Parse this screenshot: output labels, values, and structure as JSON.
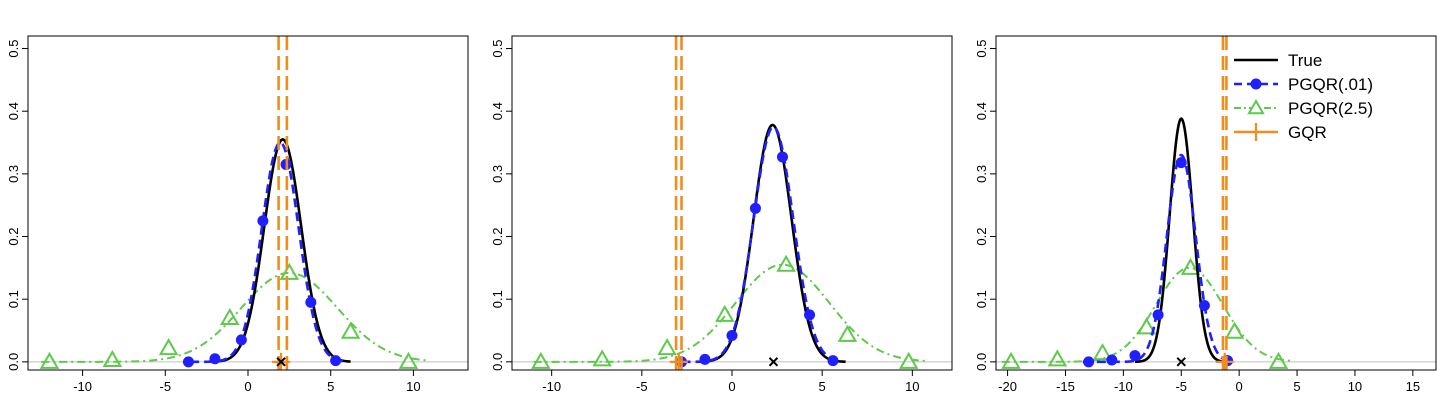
{
  "colors": {
    "true": "#000000",
    "pgqr01": "#1f1fff",
    "pgqr25": "#5ec94a",
    "gqr": "#f28c1e",
    "baseline": "#c0c0c0",
    "marker_x": "#000000"
  },
  "legend": {
    "placement": "top-right",
    "entries": [
      {
        "key": "true",
        "label": "True"
      },
      {
        "key": "pgqr01",
        "label": "PGQR(.01)"
      },
      {
        "key": "pgqr25",
        "label": "PGQR(2.5)"
      },
      {
        "key": "gqr",
        "label": "GQR"
      }
    ]
  },
  "chart_data": [
    {
      "type": "line",
      "title": "",
      "xlabel": "",
      "ylabel": "",
      "xlim": [
        -13.3,
        13.3
      ],
      "ylim": [
        -0.013,
        0.52
      ],
      "xticks": [
        -10,
        -5,
        0,
        5,
        10
      ],
      "yticks": [
        0.0,
        0.1,
        0.2,
        0.3,
        0.4,
        0.5
      ],
      "x_marker": 2.0,
      "true_curve": {
        "mu": 2.1,
        "sigma": 1.12,
        "peak": 0.355,
        "xmin": -2.0,
        "xmax": 6.2
      },
      "pgqr01": {
        "mu": 1.95,
        "sigma": 1.12,
        "peak": 0.35,
        "xmin": -3.5,
        "xmax": 6.0,
        "points": [
          [
            -3.6,
            0.0
          ],
          [
            -2.0,
            0.005
          ],
          [
            -0.4,
            0.035
          ],
          [
            0.9,
            0.225
          ],
          [
            2.3,
            0.315
          ],
          [
            3.8,
            0.095
          ],
          [
            5.3,
            0.002
          ]
        ]
      },
      "pgqr25": {
        "mu": 2.5,
        "sigma": 2.9,
        "peak": 0.142,
        "xmin": -12.5,
        "xmax": 10.8,
        "points": [
          [
            -12.0,
            0.0
          ],
          [
            -8.2,
            0.003
          ],
          [
            -4.8,
            0.022
          ],
          [
            -1.1,
            0.07
          ],
          [
            2.5,
            0.142
          ],
          [
            6.2,
            0.048
          ],
          [
            9.7,
            0.0
          ]
        ]
      },
      "gqr": {
        "lines": [
          1.85,
          2.35
        ],
        "point": [
          2.0,
          0.0
        ]
      }
    },
    {
      "type": "line",
      "title": "",
      "xlabel": "",
      "ylabel": "",
      "xlim": [
        -12.2,
        12.2
      ],
      "ylim": [
        -0.013,
        0.52
      ],
      "xticks": [
        -10,
        -5,
        0,
        5,
        10
      ],
      "yticks": [
        0.0,
        0.1,
        0.2,
        0.3,
        0.4,
        0.5
      ],
      "x_marker": 2.3,
      "true_curve": {
        "mu": 2.25,
        "sigma": 1.05,
        "peak": 0.378,
        "xmin": -2.0,
        "xmax": 6.3
      },
      "pgqr01": {
        "mu": 2.3,
        "sigma": 1.1,
        "peak": 0.375,
        "xmin": -2.8,
        "xmax": 6.0,
        "points": [
          [
            -2.8,
            0.0
          ],
          [
            -1.5,
            0.004
          ],
          [
            0.0,
            0.042
          ],
          [
            1.3,
            0.245
          ],
          [
            2.8,
            0.327
          ],
          [
            4.3,
            0.075
          ],
          [
            5.6,
            0.002
          ]
        ]
      },
      "pgqr25": {
        "mu": 2.8,
        "sigma": 2.6,
        "peak": 0.155,
        "xmin": -11.0,
        "xmax": 10.8,
        "points": [
          [
            -10.6,
            0.0
          ],
          [
            -7.2,
            0.004
          ],
          [
            -3.6,
            0.022
          ],
          [
            -0.4,
            0.075
          ],
          [
            3.0,
            0.155
          ],
          [
            6.4,
            0.043
          ],
          [
            9.8,
            0.0
          ]
        ]
      },
      "gqr": {
        "lines": [
          -3.1,
          -2.8
        ],
        "point": [
          -2.95,
          0.0
        ]
      }
    },
    {
      "type": "line",
      "title": "",
      "xlabel": "",
      "ylabel": "",
      "xlim": [
        -21.0,
        17.0
      ],
      "ylim": [
        -0.013,
        0.52
      ],
      "xticks": [
        -20,
        -15,
        -10,
        -5,
        0,
        5,
        10,
        15
      ],
      "yticks": [
        0.0,
        0.1,
        0.2,
        0.3,
        0.4,
        0.5
      ],
      "x_marker": -5.0,
      "true_curve": {
        "mu": -5.0,
        "sigma": 1.0,
        "peak": 0.388,
        "xmin": -9.0,
        "xmax": -1.0
      },
      "pgqr01": {
        "mu": -5.0,
        "sigma": 1.25,
        "peak": 0.33,
        "xmin": -13.5,
        "xmax": -0.8,
        "points": [
          [
            -13.0,
            0.0
          ],
          [
            -11.0,
            0.003
          ],
          [
            -9.0,
            0.01
          ],
          [
            -7.0,
            0.075
          ],
          [
            -5.0,
            0.318
          ],
          [
            -3.0,
            0.09
          ],
          [
            -1.0,
            0.002
          ]
        ]
      },
      "pgqr25": {
        "mu": -4.3,
        "sigma": 2.9,
        "peak": 0.15,
        "xmin": -20.5,
        "xmax": 4.5,
        "points": [
          [
            -19.7,
            0.0
          ],
          [
            -15.7,
            0.004
          ],
          [
            -11.8,
            0.014
          ],
          [
            -8.0,
            0.055
          ],
          [
            -4.2,
            0.15
          ],
          [
            -0.4,
            0.048
          ],
          [
            3.4,
            0.0
          ]
        ]
      },
      "gqr": {
        "lines": [
          -1.4,
          -1.1
        ],
        "point": [
          -1.25,
          0.0
        ]
      }
    }
  ]
}
